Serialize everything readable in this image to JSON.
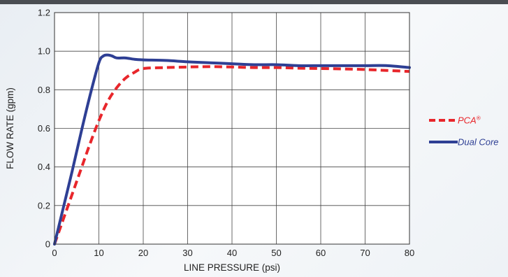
{
  "chart_data": {
    "type": "line",
    "title": "",
    "xlabel": "LINE PRESSURE (psi)",
    "ylabel": "FLOW RATE (gpm)",
    "xlim": [
      0,
      80
    ],
    "ylim": [
      0,
      1.2
    ],
    "x_ticks": [
      0,
      10,
      20,
      30,
      40,
      50,
      60,
      70,
      80
    ],
    "y_ticks": [
      "0",
      "0.2",
      "0.4",
      "0.6",
      "0.8",
      "1.0",
      "1.2"
    ],
    "grid": true,
    "legend_position": "right",
    "series": [
      {
        "name": "PCA",
        "name_superscript": "®",
        "color": "#e8262b",
        "style": "dashed",
        "x": [
          0,
          2,
          4,
          6,
          8,
          10,
          12,
          14,
          16,
          18,
          20,
          25,
          30,
          35,
          40,
          45,
          50,
          55,
          60,
          65,
          70,
          75,
          80
        ],
        "y": [
          0,
          0.13,
          0.26,
          0.39,
          0.52,
          0.64,
          0.74,
          0.81,
          0.86,
          0.89,
          0.91,
          0.915,
          0.918,
          0.92,
          0.918,
          0.915,
          0.915,
          0.912,
          0.91,
          0.908,
          0.905,
          0.9,
          0.895
        ]
      },
      {
        "name": "Dual Core",
        "color": "#2e3f94",
        "style": "solid",
        "x": [
          0,
          2,
          4,
          6,
          8,
          10,
          11,
          12,
          13,
          14,
          16,
          18,
          20,
          25,
          30,
          35,
          40,
          45,
          50,
          55,
          60,
          65,
          70,
          75,
          80
        ],
        "y": [
          0,
          0.19,
          0.38,
          0.58,
          0.77,
          0.94,
          0.975,
          0.98,
          0.975,
          0.965,
          0.965,
          0.958,
          0.955,
          0.952,
          0.945,
          0.94,
          0.935,
          0.93,
          0.93,
          0.925,
          0.925,
          0.925,
          0.925,
          0.925,
          0.915
        ]
      }
    ]
  }
}
